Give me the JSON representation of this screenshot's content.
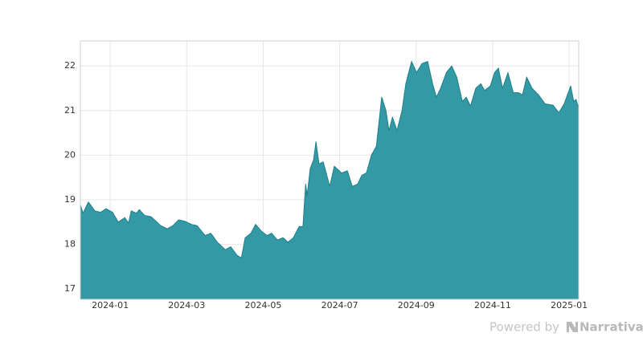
{
  "chart_data": {
    "type": "area",
    "x": [
      -0.78,
      -0.71,
      -0.57,
      -0.4,
      -0.25,
      -0.11,
      0.06,
      0.21,
      0.38,
      0.48,
      0.55,
      0.69,
      0.76,
      0.9,
      1.07,
      1.22,
      1.32,
      1.49,
      1.64,
      1.79,
      1.95,
      2.12,
      2.27,
      2.48,
      2.63,
      2.8,
      3.01,
      3.15,
      3.32,
      3.43,
      3.53,
      3.68,
      3.8,
      3.95,
      4.1,
      4.22,
      4.37,
      4.52,
      4.65,
      4.79,
      4.94,
      5.04,
      5.11,
      5.15,
      5.23,
      5.32,
      5.38,
      5.46,
      5.57,
      5.74,
      5.86,
      6.05,
      6.2,
      6.33,
      6.47,
      6.58,
      6.7,
      6.83,
      6.96,
      7.1,
      7.21,
      7.29,
      7.38,
      7.5,
      7.63,
      7.73,
      7.88,
      8.01,
      8.15,
      8.3,
      8.43,
      8.53,
      8.64,
      8.79,
      8.93,
      9.06,
      9.21,
      9.31,
      9.42,
      9.56,
      9.69,
      9.79,
      9.94,
      10.05,
      10.15,
      10.26,
      10.4,
      10.54,
      10.68,
      10.78,
      10.89,
      11.03,
      11.2,
      11.37,
      11.58,
      11.73,
      11.87,
      12.04,
      12.12,
      12.18,
      12.25
    ],
    "values": [
      18.89,
      18.7,
      18.95,
      18.75,
      18.72,
      18.8,
      18.72,
      18.5,
      18.6,
      18.48,
      18.75,
      18.7,
      18.78,
      18.65,
      18.62,
      18.5,
      18.42,
      18.35,
      18.42,
      18.55,
      18.52,
      18.45,
      18.42,
      18.2,
      18.25,
      18.05,
      17.88,
      17.95,
      17.75,
      17.7,
      18.15,
      18.25,
      18.45,
      18.3,
      18.2,
      18.25,
      18.1,
      18.15,
      18.05,
      18.15,
      18.4,
      18.4,
      19.35,
      19.1,
      19.7,
      19.9,
      20.3,
      19.8,
      19.85,
      19.3,
      19.75,
      19.6,
      19.65,
      19.3,
      19.35,
      19.55,
      19.6,
      20.0,
      20.2,
      21.3,
      21.0,
      20.55,
      20.85,
      20.55,
      21.0,
      21.6,
      22.1,
      21.85,
      22.05,
      22.1,
      21.6,
      21.3,
      21.5,
      21.85,
      22.0,
      21.75,
      21.2,
      21.3,
      21.1,
      21.5,
      21.6,
      21.45,
      21.55,
      21.85,
      21.95,
      21.5,
      21.85,
      21.4,
      21.4,
      21.35,
      21.75,
      21.5,
      21.35,
      21.15,
      21.12,
      20.95,
      21.15,
      21.55,
      21.2,
      21.25,
      21.05
    ],
    "color": "#3399a5",
    "line_color": "#1f7f8a",
    "xlim": [
      -0.78,
      12.25
    ],
    "xticks": [
      {
        "value": 0,
        "label": "2024-01"
      },
      {
        "value": 2,
        "label": "2024-03"
      },
      {
        "value": 4,
        "label": "2024-05"
      },
      {
        "value": 6,
        "label": "2024-07"
      },
      {
        "value": 8,
        "label": "2024-09"
      },
      {
        "value": 10,
        "label": "2024-11"
      },
      {
        "value": 12,
        "label": "2025-01"
      }
    ],
    "ylim": [
      16.77,
      22.56
    ],
    "yticks": [
      17,
      18,
      19,
      20,
      21,
      22
    ],
    "grid": true
  },
  "footer": {
    "text": "Powered by",
    "brand": "Narrativa"
  }
}
